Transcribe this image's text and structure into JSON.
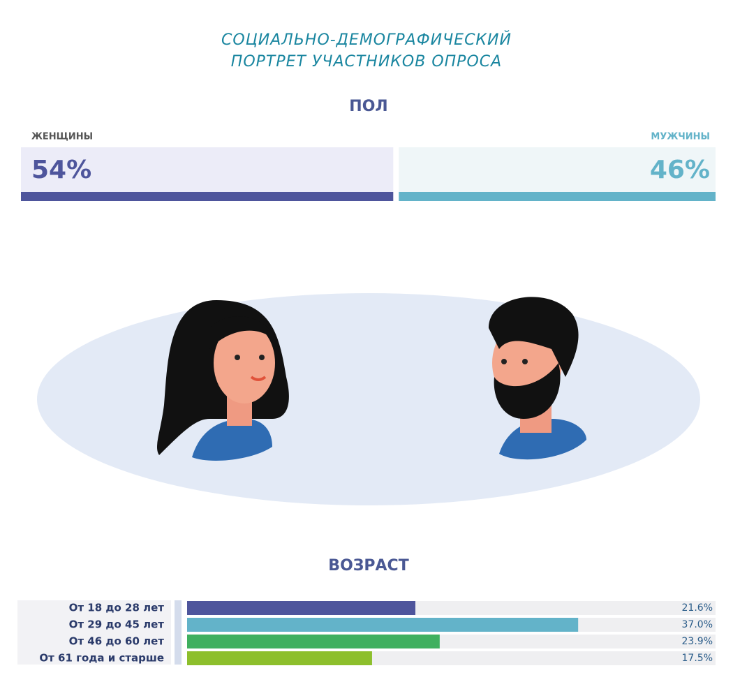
{
  "page_title": [
    "СОЦИАЛЬНО-ДЕМОГРАФИЧЕСКИЙ",
    "ПОРТРЕТ УЧАСТНИКОВ ОПРОСА"
  ],
  "chart_data": [
    {
      "type": "split",
      "title": "ПОЛ",
      "categories": [
        "ЖЕНЩИНЫ",
        "МУЖЧИНЫ"
      ],
      "values": [
        54,
        46
      ],
      "value_labels": [
        "54%",
        "46%"
      ],
      "colors": [
        "#4e559c",
        "#63b3c9"
      ],
      "xlim": [
        0,
        100
      ]
    },
    {
      "type": "hbar",
      "title": "ВОЗРАСТ",
      "categories": [
        "От 18 до 28 лет",
        "От 29 до 45 лет",
        "От 46 до 60 лет",
        "От 61 года и старше"
      ],
      "values": [
        21.6,
        37.0,
        23.9,
        17.5
      ],
      "value_labels": [
        "21.6%",
        "37.0%",
        "23.9%",
        "17.5%"
      ],
      "colors": [
        "#4e559c",
        "#63b3c9",
        "#3fb05f",
        "#8dbf2c"
      ],
      "xlim": [
        0,
        50
      ]
    }
  ]
}
